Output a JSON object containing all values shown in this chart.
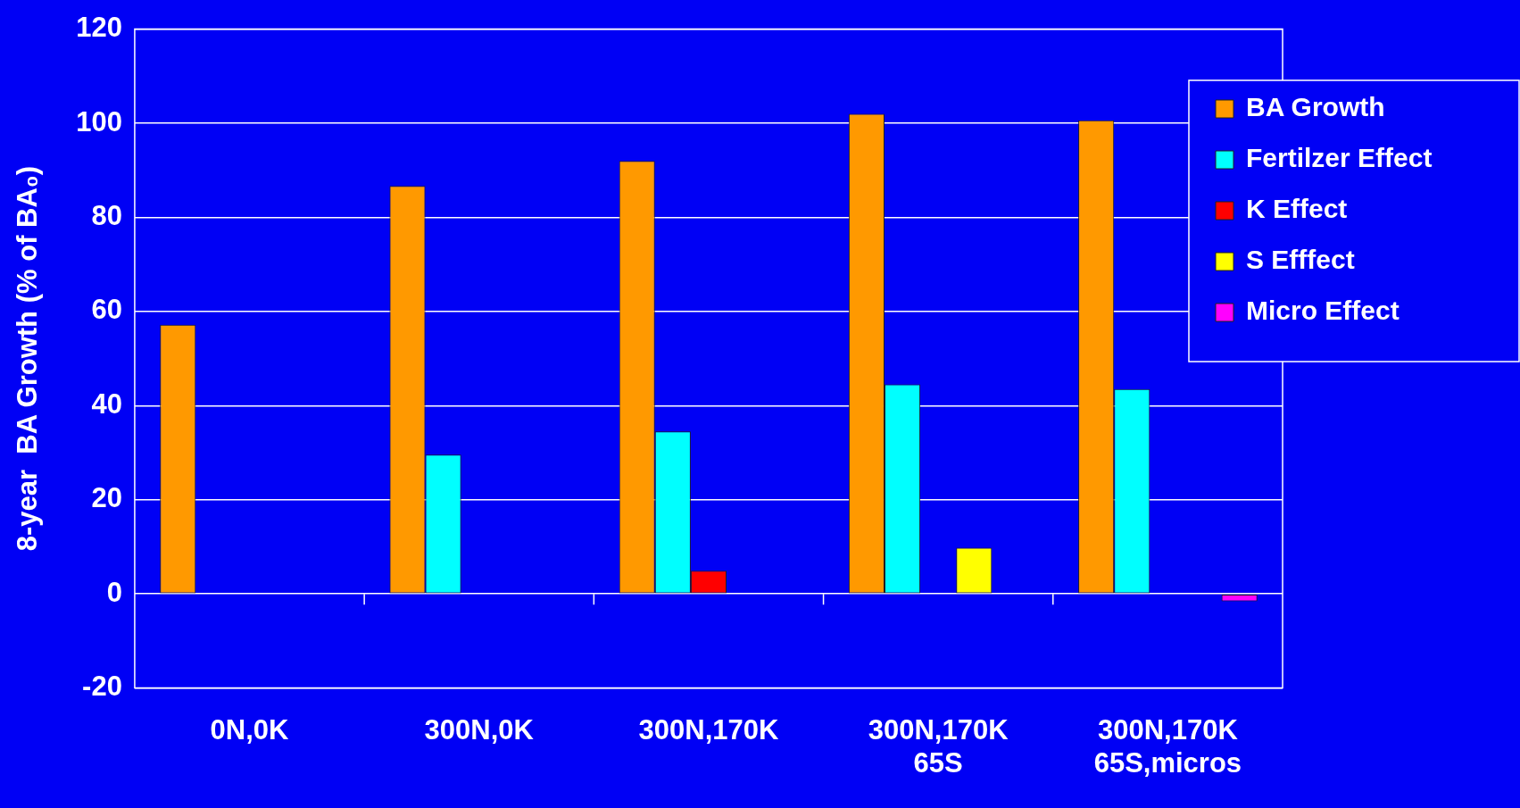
{
  "chart_data": {
    "type": "bar",
    "ylabel": "8-year  BA Growth (% of BA₀)",
    "categories": [
      "0N,0K",
      "300N,0K",
      "300N,170K",
      "300N,170K\n65S",
      "300N,170K\n65S,micros"
    ],
    "series": [
      {
        "name": "BA Growth",
        "color": "#ff9900",
        "values": [
          57.2,
          86.7,
          92,
          102,
          100.6
        ]
      },
      {
        "name": "Fertilzer Effect",
        "color": "#00ffff",
        "values": [
          null,
          29.6,
          34.5,
          44.5,
          43.5
        ]
      },
      {
        "name": "K Effect",
        "color": "#ff0000",
        "values": [
          null,
          null,
          4.9,
          null,
          null
        ]
      },
      {
        "name": "S Efffect",
        "color": "#ffff00",
        "values": [
          null,
          null,
          null,
          9.8,
          null
        ]
      },
      {
        "name": "Micro Effect",
        "color": "#ff00ff",
        "values": [
          null,
          null,
          null,
          null,
          -1.6
        ]
      }
    ],
    "ylim": [
      -20,
      120
    ],
    "yticks": [
      -20,
      0,
      20,
      40,
      60,
      80,
      100,
      120
    ],
    "grid": "y",
    "legend": "top right"
  }
}
